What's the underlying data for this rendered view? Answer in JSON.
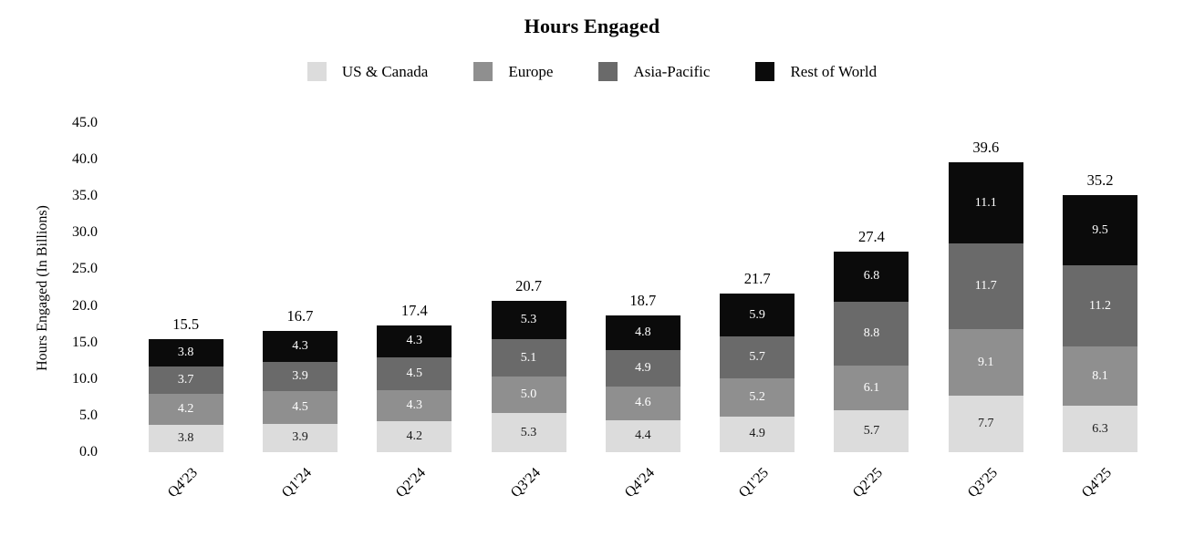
{
  "title": "Hours Engaged",
  "y_axis": {
    "label": "Hours Engaged (In Billions)",
    "ticks": [
      "0.0",
      "5.0",
      "10.0",
      "15.0",
      "20.0",
      "25.0",
      "30.0",
      "35.0",
      "40.0",
      "45.0"
    ],
    "min": 0,
    "max": 45,
    "step": 5
  },
  "chart_data": {
    "type": "bar",
    "stacked": true,
    "title": "Hours Engaged",
    "xlabel": "",
    "ylabel": "Hours Engaged (In Billions)",
    "ylim": [
      0,
      45
    ],
    "grid": false,
    "legend_position": "top",
    "categories": [
      "Q4'23",
      "Q1'24",
      "Q2'24",
      "Q3'24",
      "Q4'24",
      "Q1'25",
      "Q2'25",
      "Q3'25",
      "Q4'25"
    ],
    "series": [
      {
        "name": "US & Canada",
        "color": "#dcdcdc",
        "label_color": "#1a1a1a",
        "values": [
          3.8,
          3.9,
          4.2,
          5.3,
          4.4,
          4.9,
          5.7,
          7.7,
          6.3
        ]
      },
      {
        "name": "Europe",
        "color": "#8f8f8f",
        "label_color": "#ffffff",
        "values": [
          4.2,
          4.5,
          4.3,
          5.0,
          4.6,
          5.2,
          6.1,
          9.1,
          8.1
        ]
      },
      {
        "name": "Asia-Pacific",
        "color": "#6a6a6a",
        "label_color": "#ffffff",
        "values": [
          3.7,
          3.9,
          4.5,
          5.1,
          4.9,
          5.7,
          8.8,
          11.7,
          11.2
        ]
      },
      {
        "name": "Rest of World",
        "color": "#0b0b0b",
        "label_color": "#ffffff",
        "values": [
          3.8,
          4.3,
          4.3,
          5.3,
          4.8,
          5.9,
          6.8,
          11.1,
          9.5
        ]
      }
    ],
    "totals": [
      "15.5",
      "16.7",
      "17.4",
      "20.7",
      "18.7",
      "21.7",
      "27.4",
      "39.6",
      "35.2"
    ]
  }
}
